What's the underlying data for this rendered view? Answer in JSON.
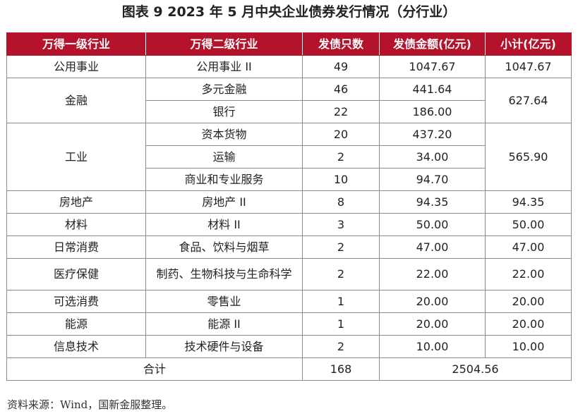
{
  "title": "图表 9  2023 年 5 月中央企业债券发行情况（分行业）",
  "headers": [
    "万得一级行业",
    "万得二级行业",
    "发债只数",
    "发债金额(亿元)",
    "小计(亿元)"
  ],
  "rows": {
    "r1": {
      "l1": "公用事业",
      "l2": "公用事业 II",
      "count": "49",
      "amount": "1047.67",
      "subtotal": "1047.67"
    },
    "r2": {
      "l1": "金融",
      "l2": "多元金融",
      "count": "46",
      "amount": "441.64",
      "subtotal": "627.64"
    },
    "r3": {
      "l2": "银行",
      "count": "22",
      "amount": "186.00"
    },
    "r4": {
      "l1": "工业",
      "l2": "资本货物",
      "count": "20",
      "amount": "437.20",
      "subtotal": "565.90"
    },
    "r5": {
      "l2": "运输",
      "count": "2",
      "amount": "34.00"
    },
    "r6": {
      "l2": "商业和专业服务",
      "count": "10",
      "amount": "94.70"
    },
    "r7": {
      "l1": "房地产",
      "l2": "房地产 II",
      "count": "8",
      "amount": "94.35",
      "subtotal": "94.35"
    },
    "r8": {
      "l1": "材料",
      "l2": "材料 II",
      "count": "3",
      "amount": "50.00",
      "subtotal": "50.00"
    },
    "r9": {
      "l1": "日常消费",
      "l2": "食品、饮料与烟草",
      "count": "2",
      "amount": "47.00",
      "subtotal": "47.00"
    },
    "r10": {
      "l1": "医疗保健",
      "l2": "制药、生物科技与生命科学",
      "count": "2",
      "amount": "22.00",
      "subtotal": "22.00"
    },
    "r11": {
      "l1": "可选消费",
      "l2": "零售业",
      "count": "1",
      "amount": "20.00",
      "subtotal": "20.00"
    },
    "r12": {
      "l1": "能源",
      "l2": "能源 II",
      "count": "1",
      "amount": "20.00",
      "subtotal": "20.00"
    },
    "r13": {
      "l1": "信息技术",
      "l2": "技术硬件与设备",
      "count": "2",
      "amount": "10.00",
      "subtotal": "10.00"
    }
  },
  "total": {
    "label": "合计",
    "count": "168",
    "amount": "2504.56"
  },
  "source": "资料来源：Wind，国新金服整理。",
  "colors": {
    "header_bg": "#b5122b",
    "header_text": "#ffffff",
    "border": "#8a8a8a"
  }
}
